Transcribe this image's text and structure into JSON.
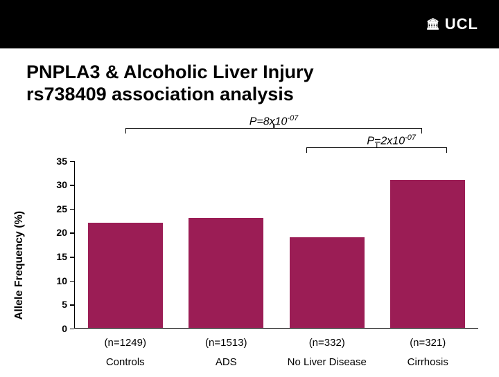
{
  "header": {
    "logo_text": "UCL",
    "logo_icon": "🏛"
  },
  "title": {
    "line1": "PNPLA3 & Alcoholic Liver Injury",
    "line2": "rs738409 association analysis"
  },
  "annotations": {
    "p_outer_prefix": "P=8x10",
    "p_outer_sup": "-07",
    "p_inner_prefix": "P=2x10",
    "p_inner_sup": "-07"
  },
  "chart": {
    "type": "bar",
    "ylabel": "Allele Frequency (%)",
    "ylim": [
      0,
      35
    ],
    "ytick_step": 5,
    "yticks": [
      0,
      5,
      10,
      15,
      20,
      25,
      30,
      35
    ],
    "ylabel_fontsize": 16,
    "tick_fontsize": 14,
    "bar_color": "#9b1d55",
    "background_color": "#ffffff",
    "axis_color": "#000000",
    "bar_width": 0.74,
    "series": [
      {
        "category_n": "(n=1249)",
        "category_name": "Controls",
        "value": 22
      },
      {
        "category_n": "(n=1513)",
        "category_name": "ADS",
        "value": 23
      },
      {
        "category_n": "(n=332)",
        "category_name": "No Liver Disease",
        "value": 19
      },
      {
        "category_n": "(n=321)",
        "category_name": "Cirrhosis",
        "value": 31
      }
    ],
    "brackets": {
      "outer": {
        "from_bar": 0,
        "to_bar": 3
      },
      "inner": {
        "from_bar": 2,
        "to_bar": 3
      }
    }
  }
}
